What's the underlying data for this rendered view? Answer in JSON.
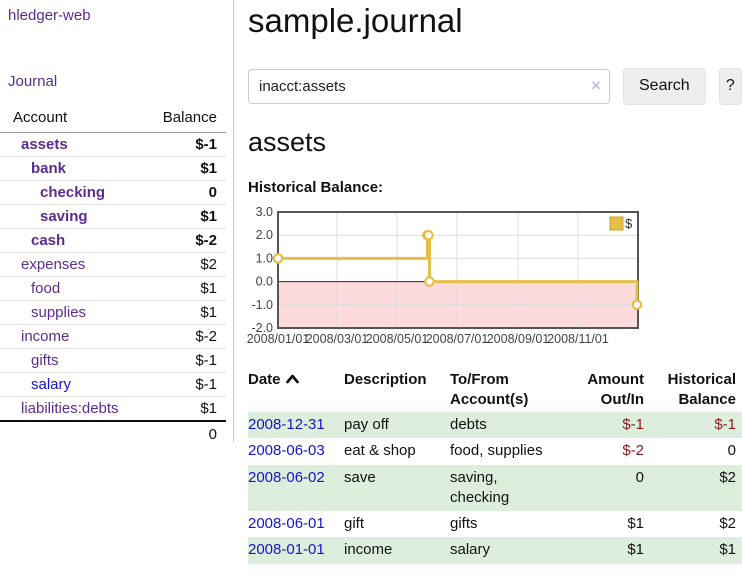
{
  "app_title": "hledger-web",
  "colors": {
    "link_purple": "#5B2D90",
    "link_blue": "#1414CC",
    "negative_strong": "#8B1A1A",
    "negative_soft": "#BE6464",
    "row_stripe_green": "#DEEEDD"
  },
  "sidebar": {
    "journal_link": "Journal",
    "accounts_table": {
      "headers": {
        "account": "Account",
        "balance": "Balance"
      },
      "rows": [
        {
          "account": "assets",
          "balance": "$-1",
          "level": 1,
          "bold": true,
          "balance_tone": "negative-strong",
          "link_color": "purple"
        },
        {
          "account": "bank",
          "balance": "$1",
          "level": 2,
          "bold": true,
          "balance_tone": "normal",
          "link_color": "purple"
        },
        {
          "account": "checking",
          "balance": "0",
          "level": 3,
          "bold": true,
          "balance_tone": "normal",
          "link_color": "purple"
        },
        {
          "account": "saving",
          "balance": "$1",
          "level": 3,
          "bold": true,
          "balance_tone": "normal",
          "link_color": "purple"
        },
        {
          "account": "cash",
          "balance": "$-2",
          "level": 2,
          "bold": true,
          "balance_tone": "negative-strong",
          "link_color": "purple"
        },
        {
          "account": "expenses",
          "balance": "$2",
          "level": 1,
          "bold": false,
          "balance_tone": "normal",
          "link_color": "purple"
        },
        {
          "account": "food",
          "balance": "$1",
          "level": 2,
          "bold": false,
          "balance_tone": "normal",
          "link_color": "purple"
        },
        {
          "account": "supplies",
          "balance": "$1",
          "level": 2,
          "bold": false,
          "balance_tone": "normal",
          "link_color": "purple"
        },
        {
          "account": "income",
          "balance": "$-2",
          "level": 1,
          "bold": false,
          "balance_tone": "negative-soft",
          "link_color": "purple"
        },
        {
          "account": "gifts",
          "balance": "$-1",
          "level": 2,
          "bold": false,
          "balance_tone": "negative-soft",
          "link_color": "purple"
        },
        {
          "account": "salary",
          "balance": "$-1",
          "level": 2,
          "bold": false,
          "balance_tone": "negative-soft",
          "link_color": "blue"
        },
        {
          "account": "liabilities:debts",
          "balance": "$1",
          "level": 1,
          "bold": false,
          "balance_tone": "normal",
          "link_color": "purple"
        }
      ],
      "total": "0"
    }
  },
  "main": {
    "page_title": "sample.journal",
    "search": {
      "value": "inacct:assets",
      "clear_label": "×",
      "search_button": "Search",
      "help_button": "?"
    },
    "account_heading": "assets",
    "section_heading": "Historical Balance:"
  },
  "chart_data": {
    "type": "line",
    "line_style": "step-after",
    "series": [
      {
        "name": "$",
        "points": [
          [
            "2008-01-01",
            1
          ],
          [
            "2008-06-01",
            2
          ],
          [
            "2008-06-02",
            2
          ],
          [
            "2008-06-03",
            0
          ],
          [
            "2008-12-31",
            -1
          ]
        ]
      }
    ],
    "x_domain": [
      "2008-01-01",
      "2009-01-01"
    ],
    "x_ticks": [
      "2008/01/01",
      "2008/03/01",
      "2008/05/01",
      "2008/07/01",
      "2008/09/01",
      "2008/11/01"
    ],
    "y_ticks": [
      3,
      2,
      1,
      0,
      -1,
      -2
    ],
    "ylim": [
      -2,
      3
    ],
    "grid": true,
    "legend": {
      "label": "$",
      "position": "top-right"
    },
    "colors": {
      "line": "#E6BE4A",
      "negative_region": "#FBDBDB",
      "zero_line": "#8B0000",
      "grid": "#DDDDDD",
      "border": "#555555",
      "legend_border": "#C9A227",
      "axis_text": "#444444"
    }
  },
  "register": {
    "columns": [
      {
        "label": "Date",
        "sorted": "ascending"
      },
      {
        "label": "Description"
      },
      {
        "label": "To/From Account(s)"
      },
      {
        "label": "Amount Out/In"
      },
      {
        "label": "Historical Balance"
      }
    ],
    "rows": [
      {
        "date": "2008-12-31",
        "description": "pay off",
        "accounts": "debts",
        "amount": "$-1",
        "balance": "$-1",
        "amount_negative": true,
        "balance_negative": true
      },
      {
        "date": "2008-06-03",
        "description": "eat & shop",
        "accounts": "food, supplies",
        "amount": "$-2",
        "balance": "0",
        "amount_negative": true,
        "balance_negative": false
      },
      {
        "date": "2008-06-02",
        "description": "save",
        "accounts": "saving, checking",
        "amount": "0",
        "balance": "$2",
        "amount_negative": false,
        "balance_negative": false
      },
      {
        "date": "2008-06-01",
        "description": "gift",
        "accounts": "gifts",
        "amount": "$1",
        "balance": "$2",
        "amount_negative": false,
        "balance_negative": false
      },
      {
        "date": "2008-01-01",
        "description": "income",
        "accounts": "salary",
        "amount": "$1",
        "balance": "$1",
        "amount_negative": false,
        "balance_negative": false
      }
    ]
  }
}
